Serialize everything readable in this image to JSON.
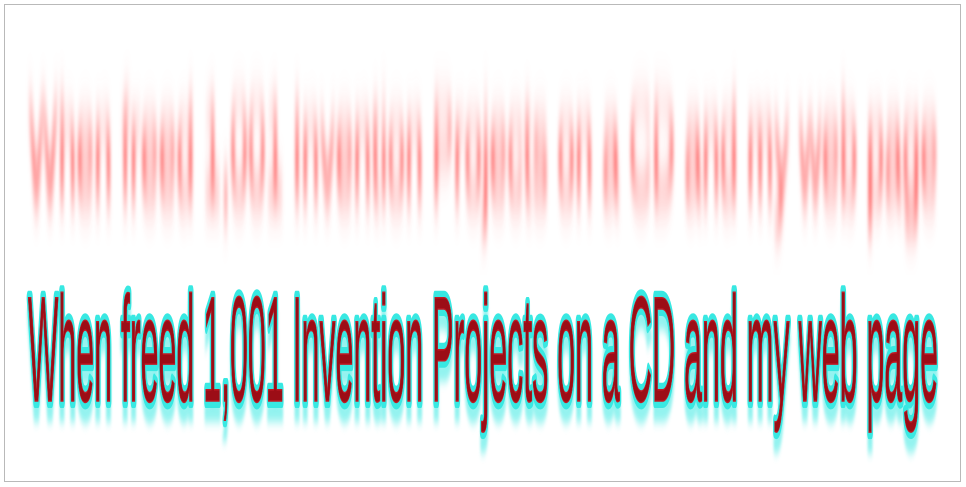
{
  "banner": {
    "text": "When freed 1,001 Invention Projects on a CD and my web page",
    "colors": {
      "text_fill": "#9c0d16",
      "glow": "#ff1a1a",
      "outline": "#38e8e2",
      "background": "#ffffff",
      "border": "#b9b9b9"
    }
  }
}
